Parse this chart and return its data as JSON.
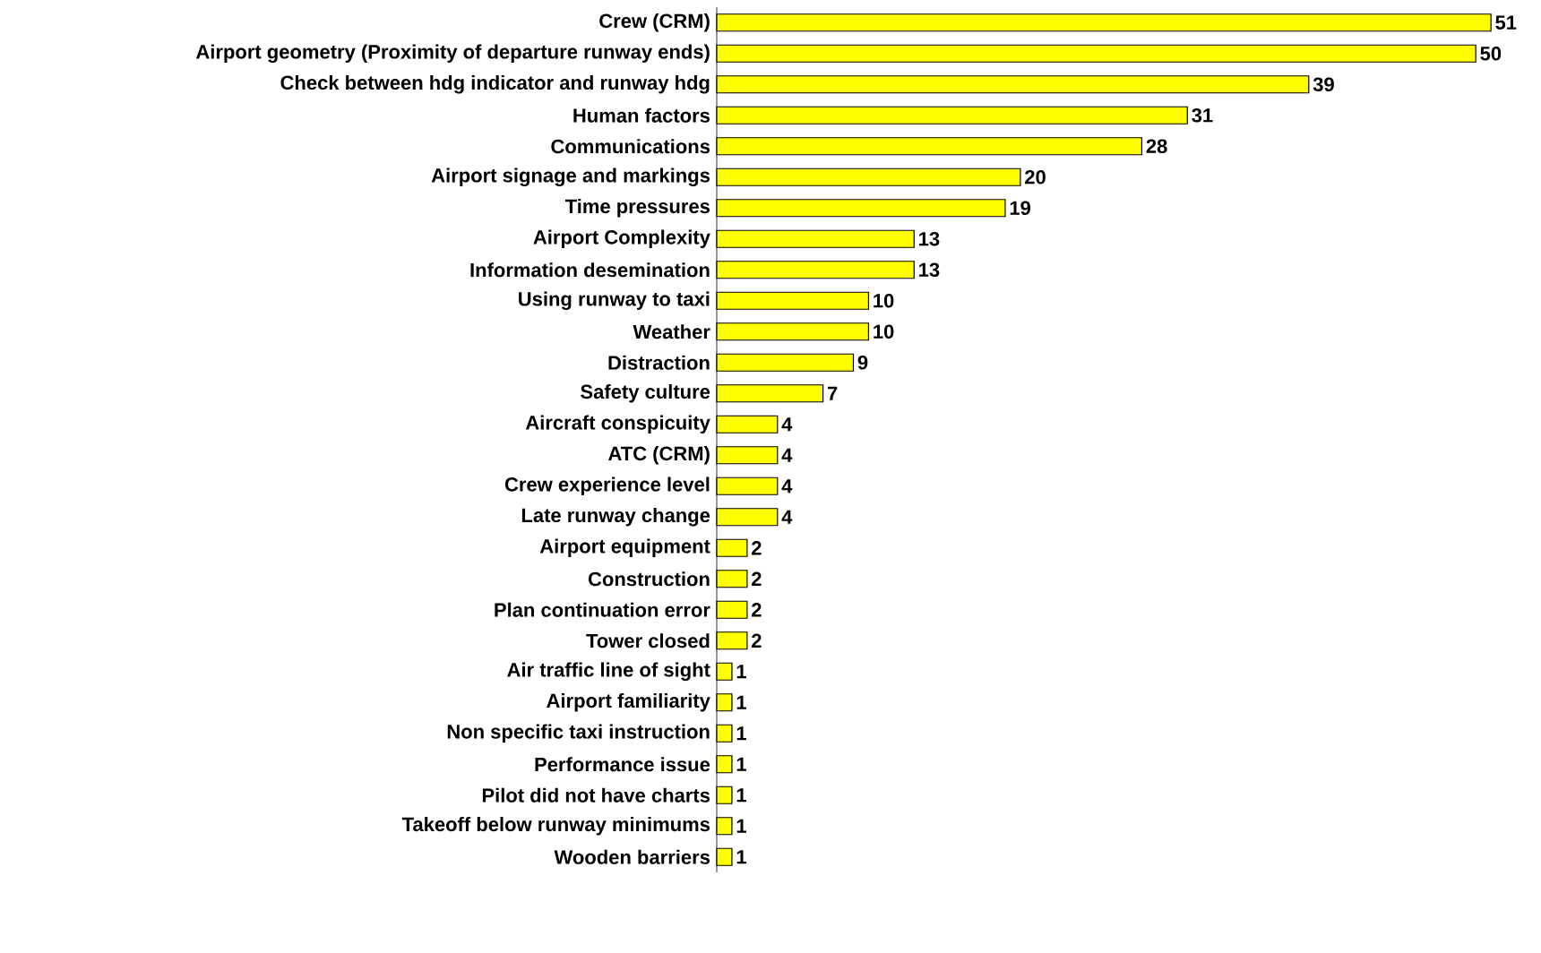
{
  "chart_data": {
    "type": "bar",
    "orientation": "horizontal",
    "color": "#ffff00",
    "data_labels": true,
    "categories": [
      "Crew (CRM)",
      "Airport geometry (Proximity of departure runway ends)",
      "Check between hdg indicator and runway hdg",
      "Human factors",
      "Communications",
      "Airport signage and markings",
      "Time pressures",
      "Airport Complexity",
      "Information desemination",
      "Using runway to taxi",
      "Weather",
      "Distraction",
      "Safety culture",
      "Aircraft conspicuity",
      "ATC (CRM)",
      "Crew experience level",
      "Late runway change",
      "Airport equipment",
      "Construction",
      "Plan continuation error",
      "Tower closed",
      "Air traffic line of sight",
      "Airport familiarity",
      "Non specific taxi instruction",
      "Performance issue",
      "Pilot did not have charts",
      "Takeoff below runway minimums",
      "Wooden barriers"
    ],
    "values": [
      51,
      50,
      39,
      31,
      28,
      20,
      19,
      13,
      13,
      10,
      10,
      9,
      7,
      4,
      4,
      4,
      4,
      2,
      2,
      2,
      2,
      1,
      1,
      1,
      1,
      1,
      1,
      1
    ]
  }
}
